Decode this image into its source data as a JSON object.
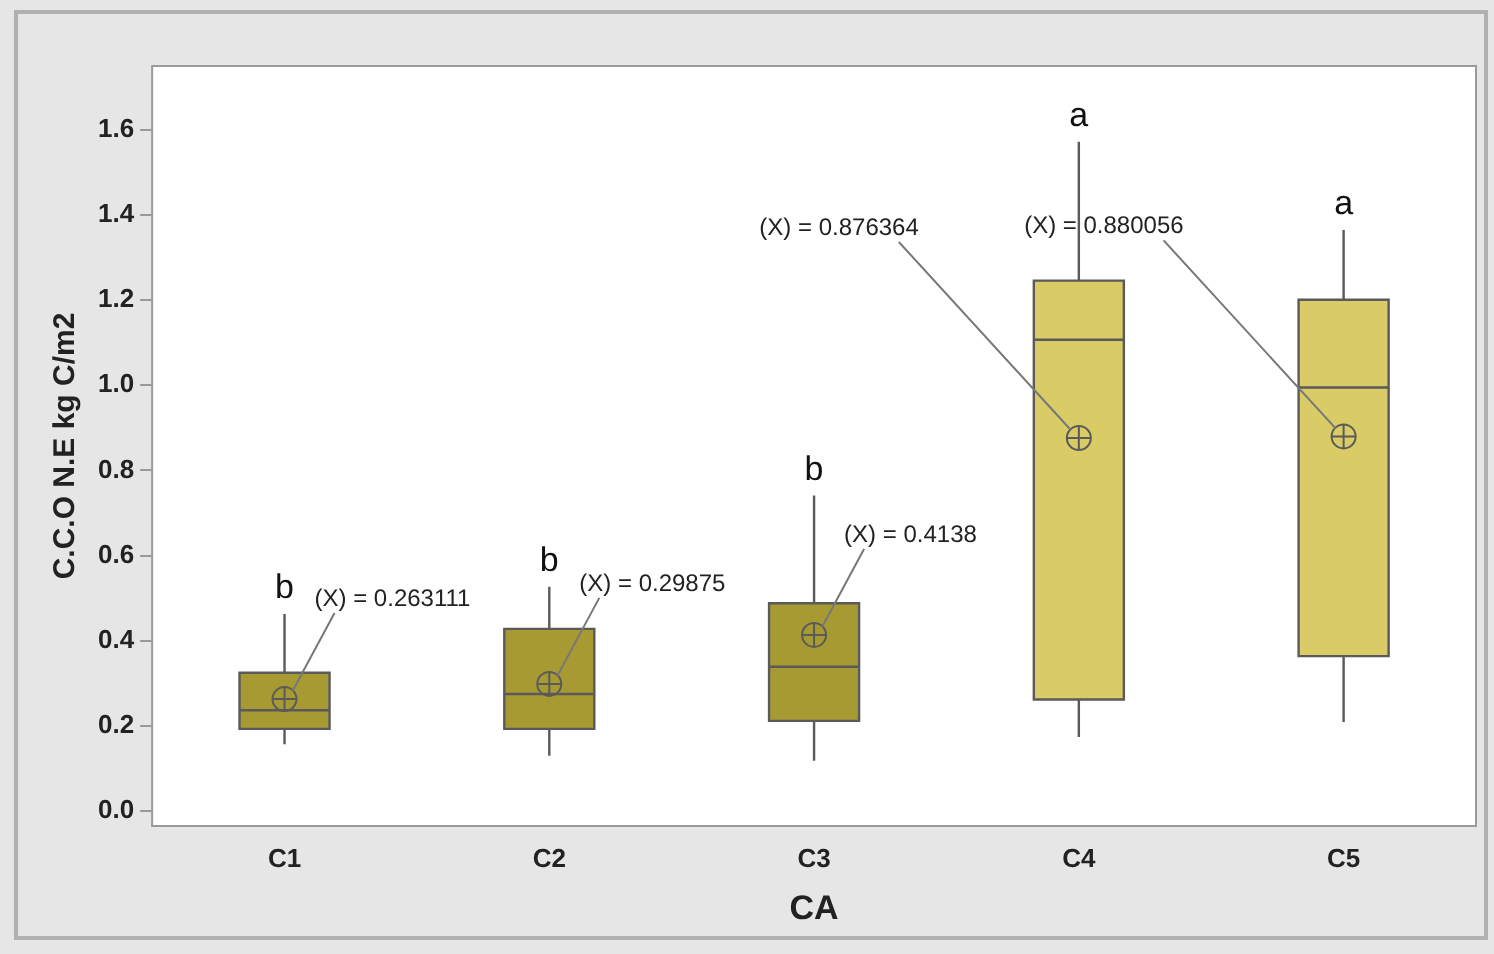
{
  "chart_data": {
    "type": "box",
    "xlabel": "CA",
    "ylabel": "C.C.O N.E kg C/m2",
    "categories": [
      "C1",
      "C2",
      "C3",
      "C4",
      "C5"
    ],
    "colors": [
      "#a89a33",
      "#a89a33",
      "#a89a33",
      "#d9cb66",
      "#d9cb66"
    ],
    "boxes": [
      {
        "low": 0.157,
        "q1": 0.193,
        "median": 0.237,
        "q3": 0.325,
        "high": 0.463,
        "mean": 0.263111
      },
      {
        "low": 0.13,
        "q1": 0.193,
        "median": 0.275,
        "q3": 0.428,
        "high": 0.527,
        "mean": 0.29875
      },
      {
        "low": 0.118,
        "q1": 0.212,
        "median": 0.339,
        "q3": 0.488,
        "high": 0.741,
        "mean": 0.4138
      },
      {
        "low": 0.174,
        "q1": 0.262,
        "median": 1.107,
        "q3": 1.246,
        "high": 1.572,
        "mean": 0.876364
      },
      {
        "low": 0.209,
        "q1": 0.364,
        "median": 0.995,
        "q3": 1.201,
        "high": 1.365,
        "mean": 0.880056
      }
    ],
    "ylim": [
      -0.035,
      1.75
    ],
    "yticks": [
      {
        "value": 0,
        "label": "0.0"
      },
      {
        "value": 0.2,
        "label": "0.2"
      },
      {
        "value": 0.4,
        "label": "0.4"
      },
      {
        "value": 0.6,
        "label": "0.6"
      },
      {
        "value": 0.8,
        "label": "0.8"
      },
      {
        "value": 1,
        "label": "1.0"
      },
      {
        "value": 1.2,
        "label": "1.2"
      },
      {
        "value": 1.4,
        "label": "1.4"
      },
      {
        "value": 1.6,
        "label": "1.6"
      }
    ],
    "grid": false,
    "legend": false,
    "marker": "circle",
    "annotations": [
      {
        "text": "b",
        "x": "C1",
        "y": 0.463
      },
      {
        "text": "b",
        "x": "C2",
        "y": 0.527
      },
      {
        "text": "b",
        "x": "C3",
        "y": 0.741
      },
      {
        "text": "a",
        "x": "C4",
        "y": 1.572
      },
      {
        "text": "a",
        "x": "C5",
        "y": 1.365
      },
      "(X) = 0.263111",
      "(X) = 0.29875",
      "(X) = 0.4138",
      "(X) = 0.876364",
      "(X) = 0.880056"
    ]
  }
}
